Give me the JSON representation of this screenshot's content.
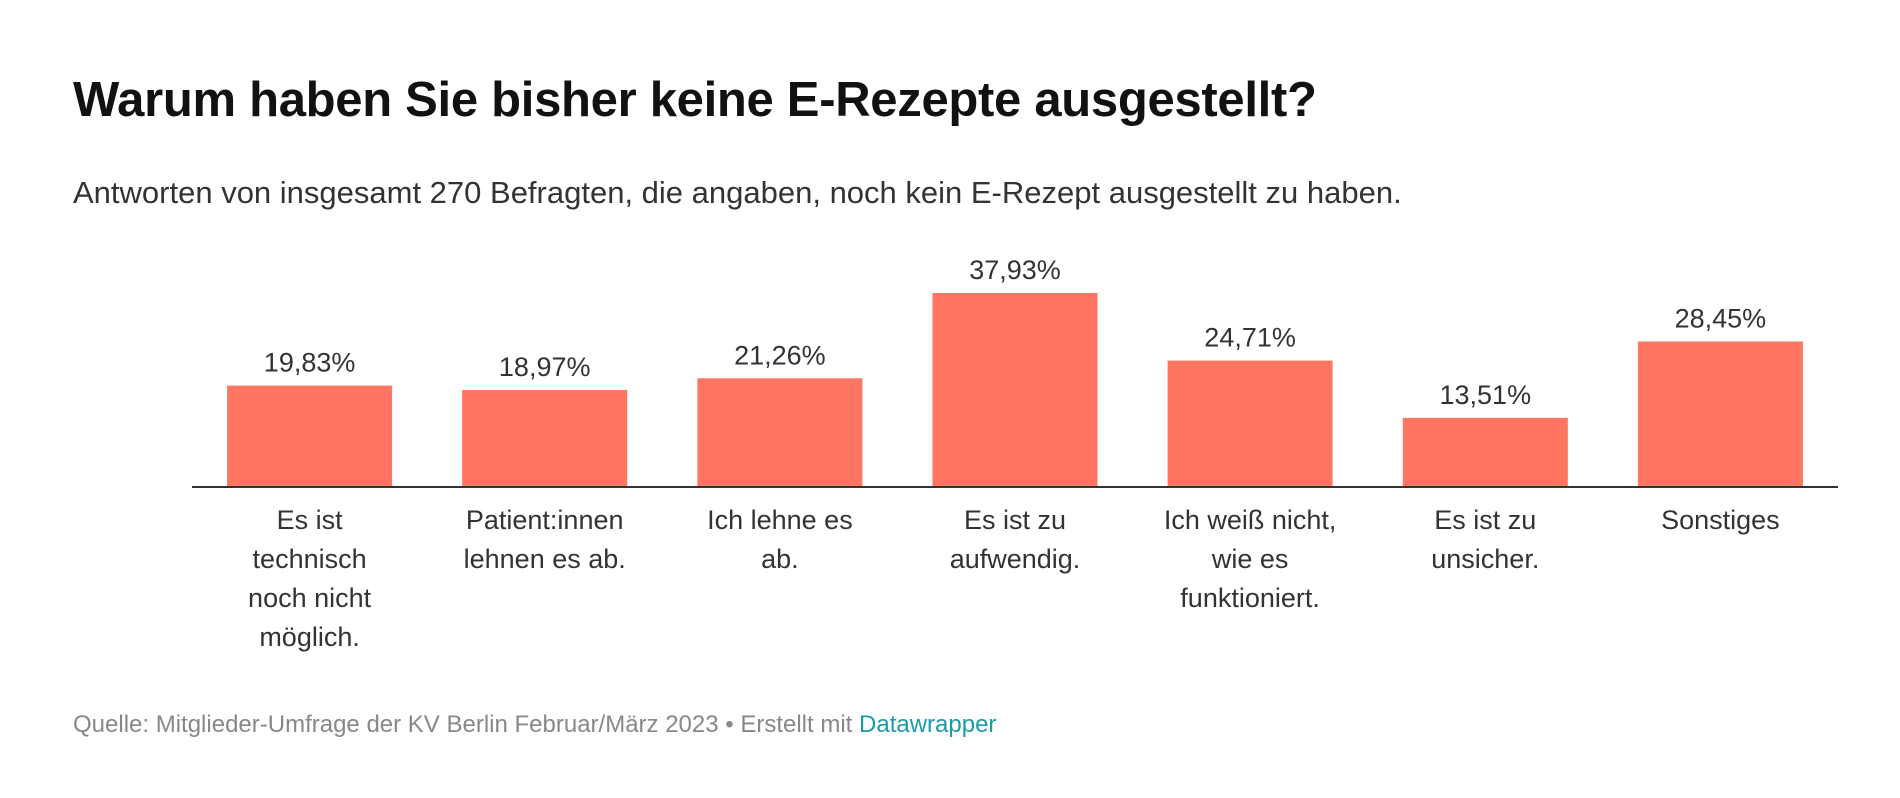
{
  "chart_data": {
    "type": "bar",
    "title": "Warum haben Sie bisher keine E-Rezepte ausgestellt?",
    "subtitle": "Antworten von insgesamt 270 Befragten, die angaben, noch kein E-Rezept ausgestellt zu haben.",
    "categories": [
      [
        "Es ist",
        "technisch",
        "noch nicht",
        "möglich."
      ],
      [
        "Patient:innen",
        "lehnen es ab."
      ],
      [
        "Ich lehne es",
        "ab."
      ],
      [
        "Es ist zu",
        "aufwendig."
      ],
      [
        "Ich weiß nicht,",
        "wie es",
        "funktioniert."
      ],
      [
        "Es ist zu",
        "unsicher."
      ],
      [
        "Sonstiges"
      ]
    ],
    "values": [
      19.83,
      18.97,
      21.26,
      37.93,
      24.71,
      13.51,
      28.45
    ],
    "value_labels": [
      "19,83%",
      "18,97%",
      "21,26%",
      "37,93%",
      "24,71%",
      "13,51%",
      "28,45%"
    ],
    "ylim": [
      0,
      37.93
    ],
    "xlabel": "",
    "ylabel": "",
    "grid": false,
    "bar_color": "#ff7561"
  },
  "footer": {
    "source": "Quelle: Mitglieder-Umfrage der KV Berlin Februar/März 2023 • Erstellt mit ",
    "link": "Datawrapper"
  }
}
